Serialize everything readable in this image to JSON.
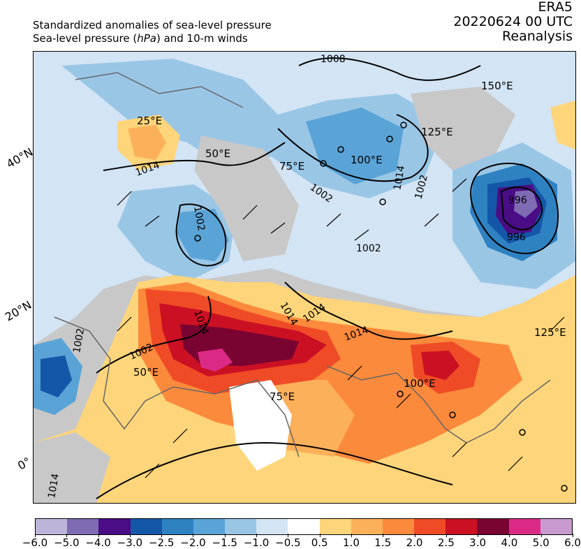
{
  "header": {
    "subtitle_line1": "Standardized anomalies of sea-level pressure",
    "subtitle_line2_pre": "Sea-level pressure (",
    "subtitle_line2_unit": "hPa",
    "subtitle_line2_post": ") and 10-m winds",
    "source": "ERA5",
    "datetime": "20220624 00 UTC",
    "product": "Reanalysis"
  },
  "map": {
    "latitude_labels": [
      "40°N",
      "20°N",
      "0°"
    ],
    "longitude_labels": [
      "25°E",
      "50°E",
      "75°E",
      "100°E",
      "125°E",
      "150°E",
      "50°E",
      "75°E",
      "100°E",
      "125°E"
    ],
    "isobar_labels": [
      "1008",
      "1014",
      "1002",
      "1002",
      "1002",
      "1002",
      "1002",
      "1014",
      "1014",
      "1014",
      "1014",
      "1002",
      "1014",
      "996",
      "996",
      "1014"
    ]
  },
  "colorbar": {
    "ticks": [
      "−6.0",
      "−5.0",
      "−4.0",
      "−3.0",
      "−2.5",
      "−2.0",
      "−1.5",
      "−1.0",
      "−0.5",
      "0.5",
      "1.0",
      "1.5",
      "2.0",
      "2.5",
      "3.0",
      "4.0",
      "5.0",
      "6.0"
    ],
    "colors": [
      "#bdb4da",
      "#7e6bb4",
      "#4a0d86",
      "#1457a8",
      "#2e82c2",
      "#5aa3d6",
      "#9ac6e6",
      "#d3e4f4",
      "#ffffff",
      "#fed57a",
      "#fdb05a",
      "#fc8a3c",
      "#ef4b27",
      "#cc1023",
      "#7a0431",
      "#db2a86",
      "#c99ad0"
    ]
  }
}
